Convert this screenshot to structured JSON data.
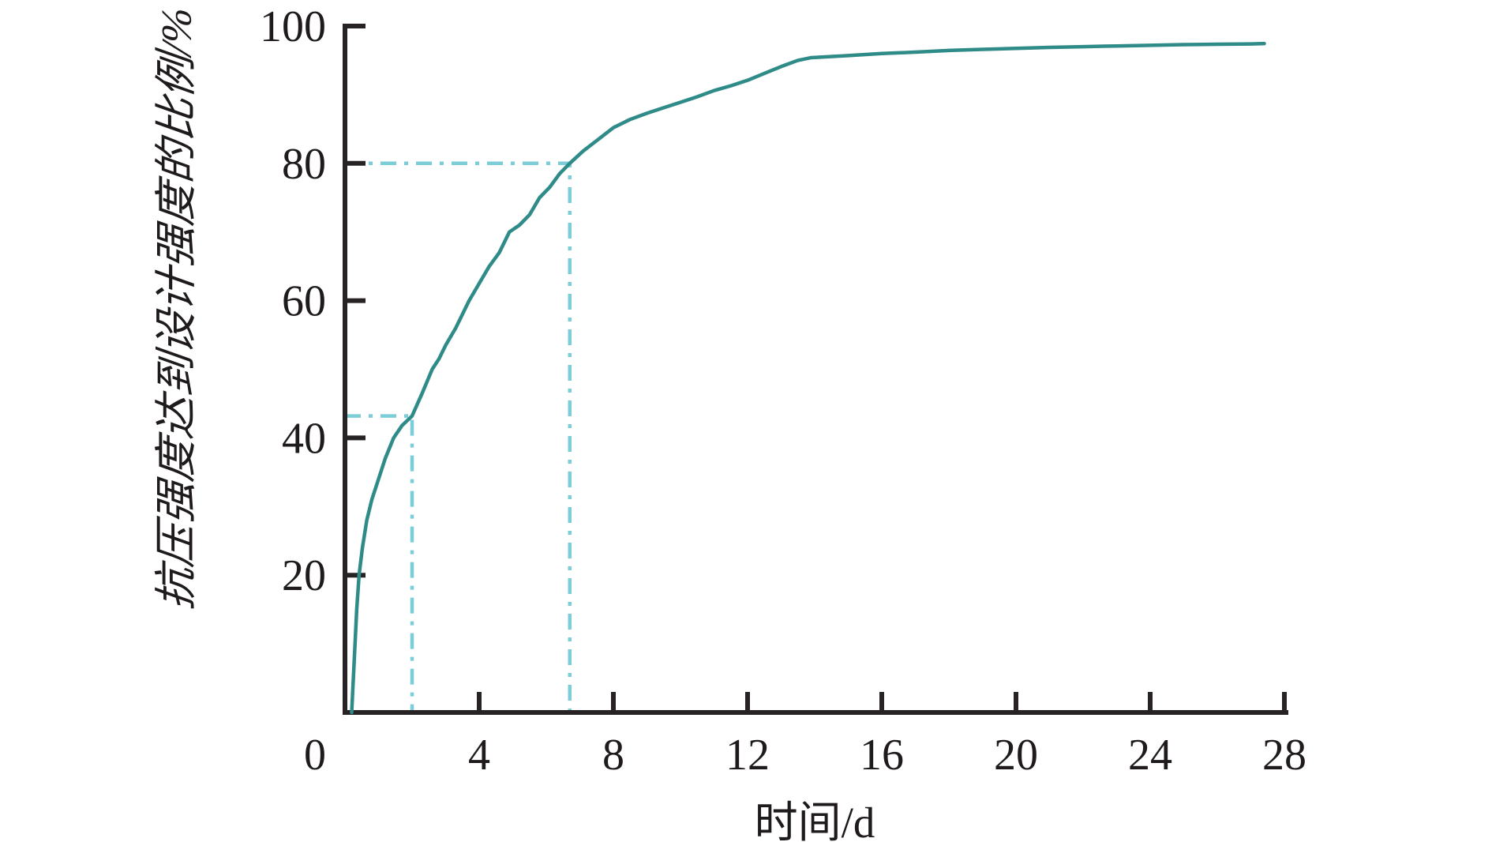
{
  "page": {
    "background": "#ffffff",
    "description": "Line chart of compressive strength development ratio versus curing time"
  },
  "chart_data": {
    "type": "line",
    "title": "",
    "xlabel": "时间/d",
    "ylabel": "抗压强度达到设计强度的比例/%",
    "xlim": [
      0,
      28
    ],
    "ylim": [
      0,
      100
    ],
    "x_ticks": [
      0,
      4,
      8,
      12,
      16,
      20,
      24,
      28
    ],
    "y_ticks": [
      20,
      40,
      60,
      80,
      100
    ],
    "grid": false,
    "legend": "none",
    "axis_color": "#272223",
    "text_color": "#1f1b1c",
    "tick_length": 26,
    "series": [
      {
        "name": "strength-ratio-vs-time",
        "color": "#2e8b88",
        "stroke_width": 4.5,
        "points": [
          [
            0.2,
            0
          ],
          [
            0.28,
            8
          ],
          [
            0.35,
            15
          ],
          [
            0.42,
            20
          ],
          [
            0.52,
            24
          ],
          [
            0.65,
            28
          ],
          [
            0.8,
            31
          ],
          [
            1.0,
            34
          ],
          [
            1.2,
            37
          ],
          [
            1.45,
            40
          ],
          [
            1.7,
            41.8
          ],
          [
            2.0,
            43.2
          ],
          [
            2.3,
            46.5
          ],
          [
            2.6,
            50
          ],
          [
            2.8,
            51.5
          ],
          [
            3.0,
            53.5
          ],
          [
            3.3,
            56
          ],
          [
            3.5,
            58
          ],
          [
            3.7,
            60
          ],
          [
            4.0,
            62.5
          ],
          [
            4.3,
            65
          ],
          [
            4.6,
            67
          ],
          [
            4.9,
            70
          ],
          [
            5.2,
            71
          ],
          [
            5.5,
            72.5
          ],
          [
            5.8,
            75
          ],
          [
            6.1,
            76.5
          ],
          [
            6.4,
            78.5
          ],
          [
            6.7,
            80
          ],
          [
            7.1,
            81.8
          ],
          [
            7.5,
            83.3
          ],
          [
            8.0,
            85.2
          ],
          [
            8.5,
            86.4
          ],
          [
            9.0,
            87.3
          ],
          [
            9.5,
            88.1
          ],
          [
            10.0,
            88.9
          ],
          [
            10.5,
            89.7
          ],
          [
            11.0,
            90.6
          ],
          [
            11.5,
            91.3
          ],
          [
            12.0,
            92.1
          ],
          [
            12.5,
            93.1
          ],
          [
            13.0,
            94.1
          ],
          [
            13.5,
            95.0
          ],
          [
            13.9,
            95.4
          ],
          [
            15.0,
            95.7
          ],
          [
            16.0,
            96.0
          ],
          [
            17.0,
            96.2
          ],
          [
            18.0,
            96.45
          ],
          [
            19.0,
            96.6
          ],
          [
            20.0,
            96.75
          ],
          [
            21.0,
            96.9
          ],
          [
            22.0,
            97.0
          ],
          [
            23.0,
            97.1
          ],
          [
            24.0,
            97.2
          ],
          [
            25.0,
            97.3
          ],
          [
            26.0,
            97.35
          ],
          [
            27.0,
            97.4
          ],
          [
            27.4,
            97.45
          ]
        ]
      }
    ],
    "guides": [
      {
        "name": "guide-43-percent-at-2d",
        "x": 2.0,
        "y": 43.2,
        "color": "#7bcdd8",
        "style": "dash-dot",
        "stroke_width": 4.5
      },
      {
        "name": "guide-80-percent-at-6.7d",
        "x": 6.7,
        "y": 80,
        "color": "#7bcdd8",
        "style": "dash-dot",
        "stroke_width": 4.5
      }
    ]
  }
}
